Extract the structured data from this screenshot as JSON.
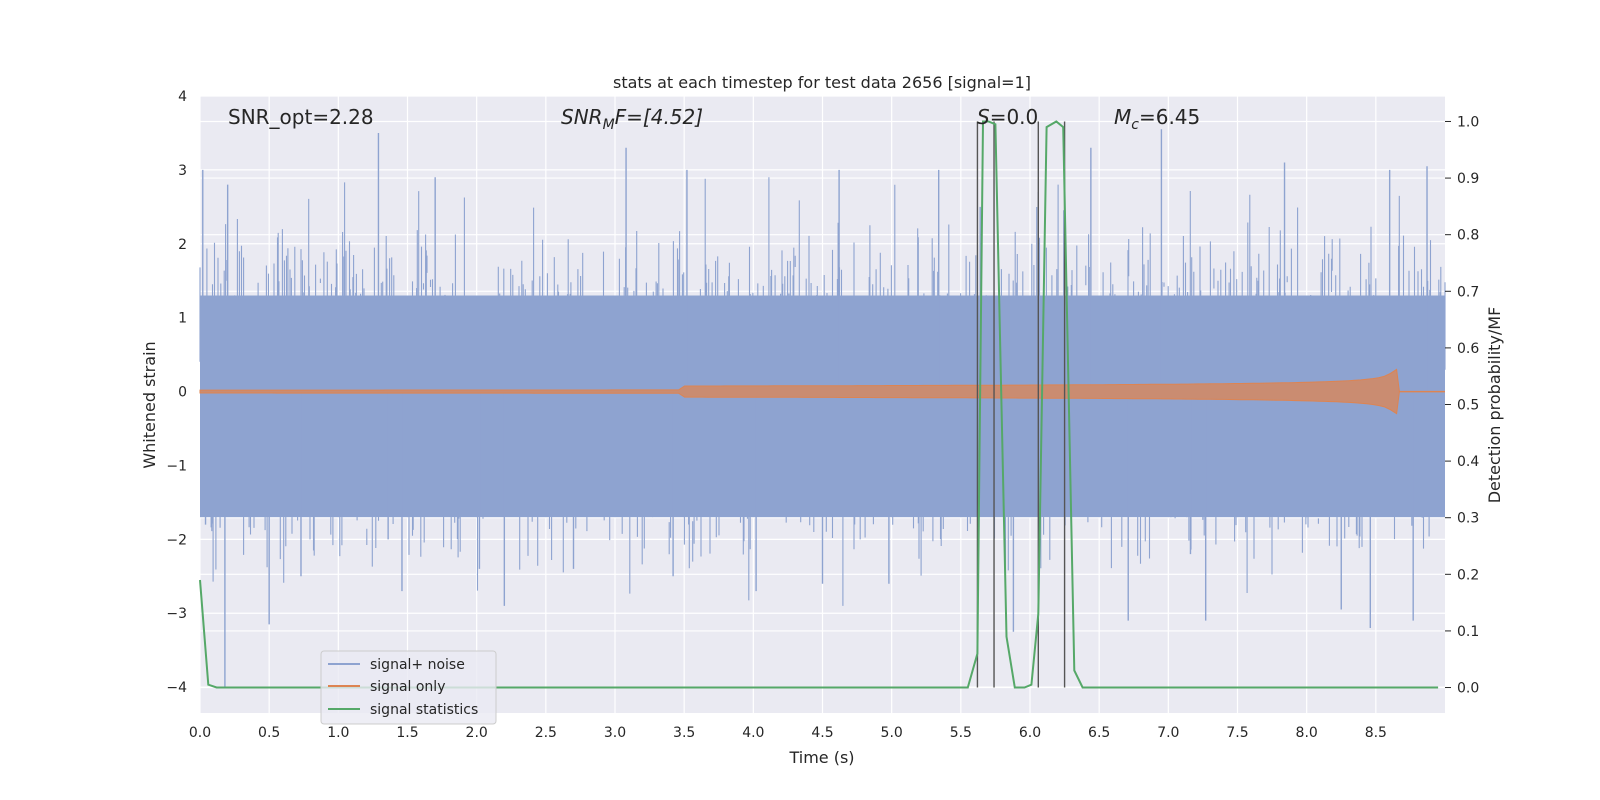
{
  "chart_data": {
    "type": "line",
    "title": "stats at each timestep for test data 2656 [signal=1]",
    "xlabel": "Time (s)",
    "ylabel": "Whitened strain",
    "y2label": "Detection probability/MF",
    "xlim": [
      0,
      9.0
    ],
    "ylim": [
      -4.35,
      4.0
    ],
    "y2lim": [
      -0.045,
      1.045
    ],
    "xticks": [
      "0.0",
      "0.5",
      "1.0",
      "1.5",
      "2.0",
      "2.5",
      "3.0",
      "3.5",
      "4.0",
      "4.5",
      "5.0",
      "5.5",
      "6.0",
      "6.5",
      "7.0",
      "7.5",
      "8.0",
      "8.5"
    ],
    "yticks": [
      "4",
      "3",
      "2",
      "1",
      "0",
      "−1",
      "−2",
      "−3",
      "−4"
    ],
    "y2ticks": [
      "1.0",
      "0.9",
      "0.8",
      "0.7",
      "0.6",
      "0.5",
      "0.4",
      "0.3",
      "0.2",
      "0.1",
      "0.0"
    ],
    "grid": true,
    "legend_position": "bottom-left",
    "annotations": {
      "snr_opt": "SNR_opt=2.28",
      "snr_mf_main": "SNR",
      "snr_mf_sub": "M",
      "snr_mf_rest": "F=[4.52]",
      "s_main": "S",
      "s_rest": "=0.0",
      "mc_main": "M",
      "mc_sub": "c",
      "mc_rest": "=6.45"
    },
    "series": [
      {
        "name": "signal+ noise",
        "color": "#8ea3d0",
        "description_values": "whitened noisy strain, roughly Gaussian, amplitude within about ±3.5"
      },
      {
        "name": "signal only",
        "color": "#dd8452",
        "chirp": {
          "t_start": 0.0,
          "t_merge": 8.65,
          "peak_amplitude": 0.3
        }
      },
      {
        "name": "signal statistics",
        "color": "#55a868",
        "x": [
          0.0,
          0.06,
          0.12,
          0.2,
          5.55,
          5.62,
          5.66,
          5.7,
          5.75,
          5.83,
          5.89,
          5.96,
          6.01,
          6.06,
          6.12,
          6.19,
          6.24,
          6.32,
          6.38,
          8.95
        ],
        "y": [
          0.19,
          0.005,
          0.0,
          0.0,
          0.0,
          0.06,
          1.0,
          1.0,
          0.995,
          0.09,
          0.0,
          0.0,
          0.005,
          0.13,
          0.99,
          1.0,
          0.99,
          0.03,
          0.0,
          0.0
        ]
      }
    ],
    "vertical_lines": [
      5.62,
      5.74,
      6.06,
      6.25
    ],
    "noise_spikes": [
      {
        "x": 0.02,
        "v": 3.0
      },
      {
        "x": 0.04,
        "v": -1.8
      },
      {
        "x": 0.18,
        "v": -4.0
      },
      {
        "x": 0.2,
        "v": 2.8
      },
      {
        "x": 0.5,
        "v": -3.15
      },
      {
        "x": 0.73,
        "v": -2.5
      },
      {
        "x": 1.29,
        "v": 3.5
      },
      {
        "x": 1.36,
        "v": -2.0
      },
      {
        "x": 1.46,
        "v": -2.7
      },
      {
        "x": 1.7,
        "v": 2.9
      },
      {
        "x": 2.02,
        "v": -2.4
      },
      {
        "x": 2.2,
        "v": -2.9
      },
      {
        "x": 2.7,
        "v": -2.4
      },
      {
        "x": 3.08,
        "v": 3.3
      },
      {
        "x": 3.42,
        "v": -2.5
      },
      {
        "x": 3.52,
        "v": 3.0
      },
      {
        "x": 4.02,
        "v": -2.7
      },
      {
        "x": 4.5,
        "v": -2.6
      },
      {
        "x": 4.62,
        "v": 3.0
      },
      {
        "x": 4.98,
        "v": -2.6
      },
      {
        "x": 5.34,
        "v": 3.0
      },
      {
        "x": 5.64,
        "v": 2.5
      },
      {
        "x": 5.88,
        "v": -3.25
      },
      {
        "x": 6.06,
        "v": 2.7
      },
      {
        "x": 6.44,
        "v": 3.3
      },
      {
        "x": 6.71,
        "v": -3.1
      },
      {
        "x": 6.95,
        "v": 3.55
      },
      {
        "x": 7.16,
        "v": -2.2
      },
      {
        "x": 7.27,
        "v": -3.1
      },
      {
        "x": 7.84,
        "v": 3.1
      },
      {
        "x": 8.25,
        "v": -2.95
      },
      {
        "x": 8.46,
        "v": -3.2
      },
      {
        "x": 8.6,
        "v": 3.0
      },
      {
        "x": 8.77,
        "v": -3.1
      },
      {
        "x": 8.87,
        "v": 3.05
      }
    ]
  }
}
